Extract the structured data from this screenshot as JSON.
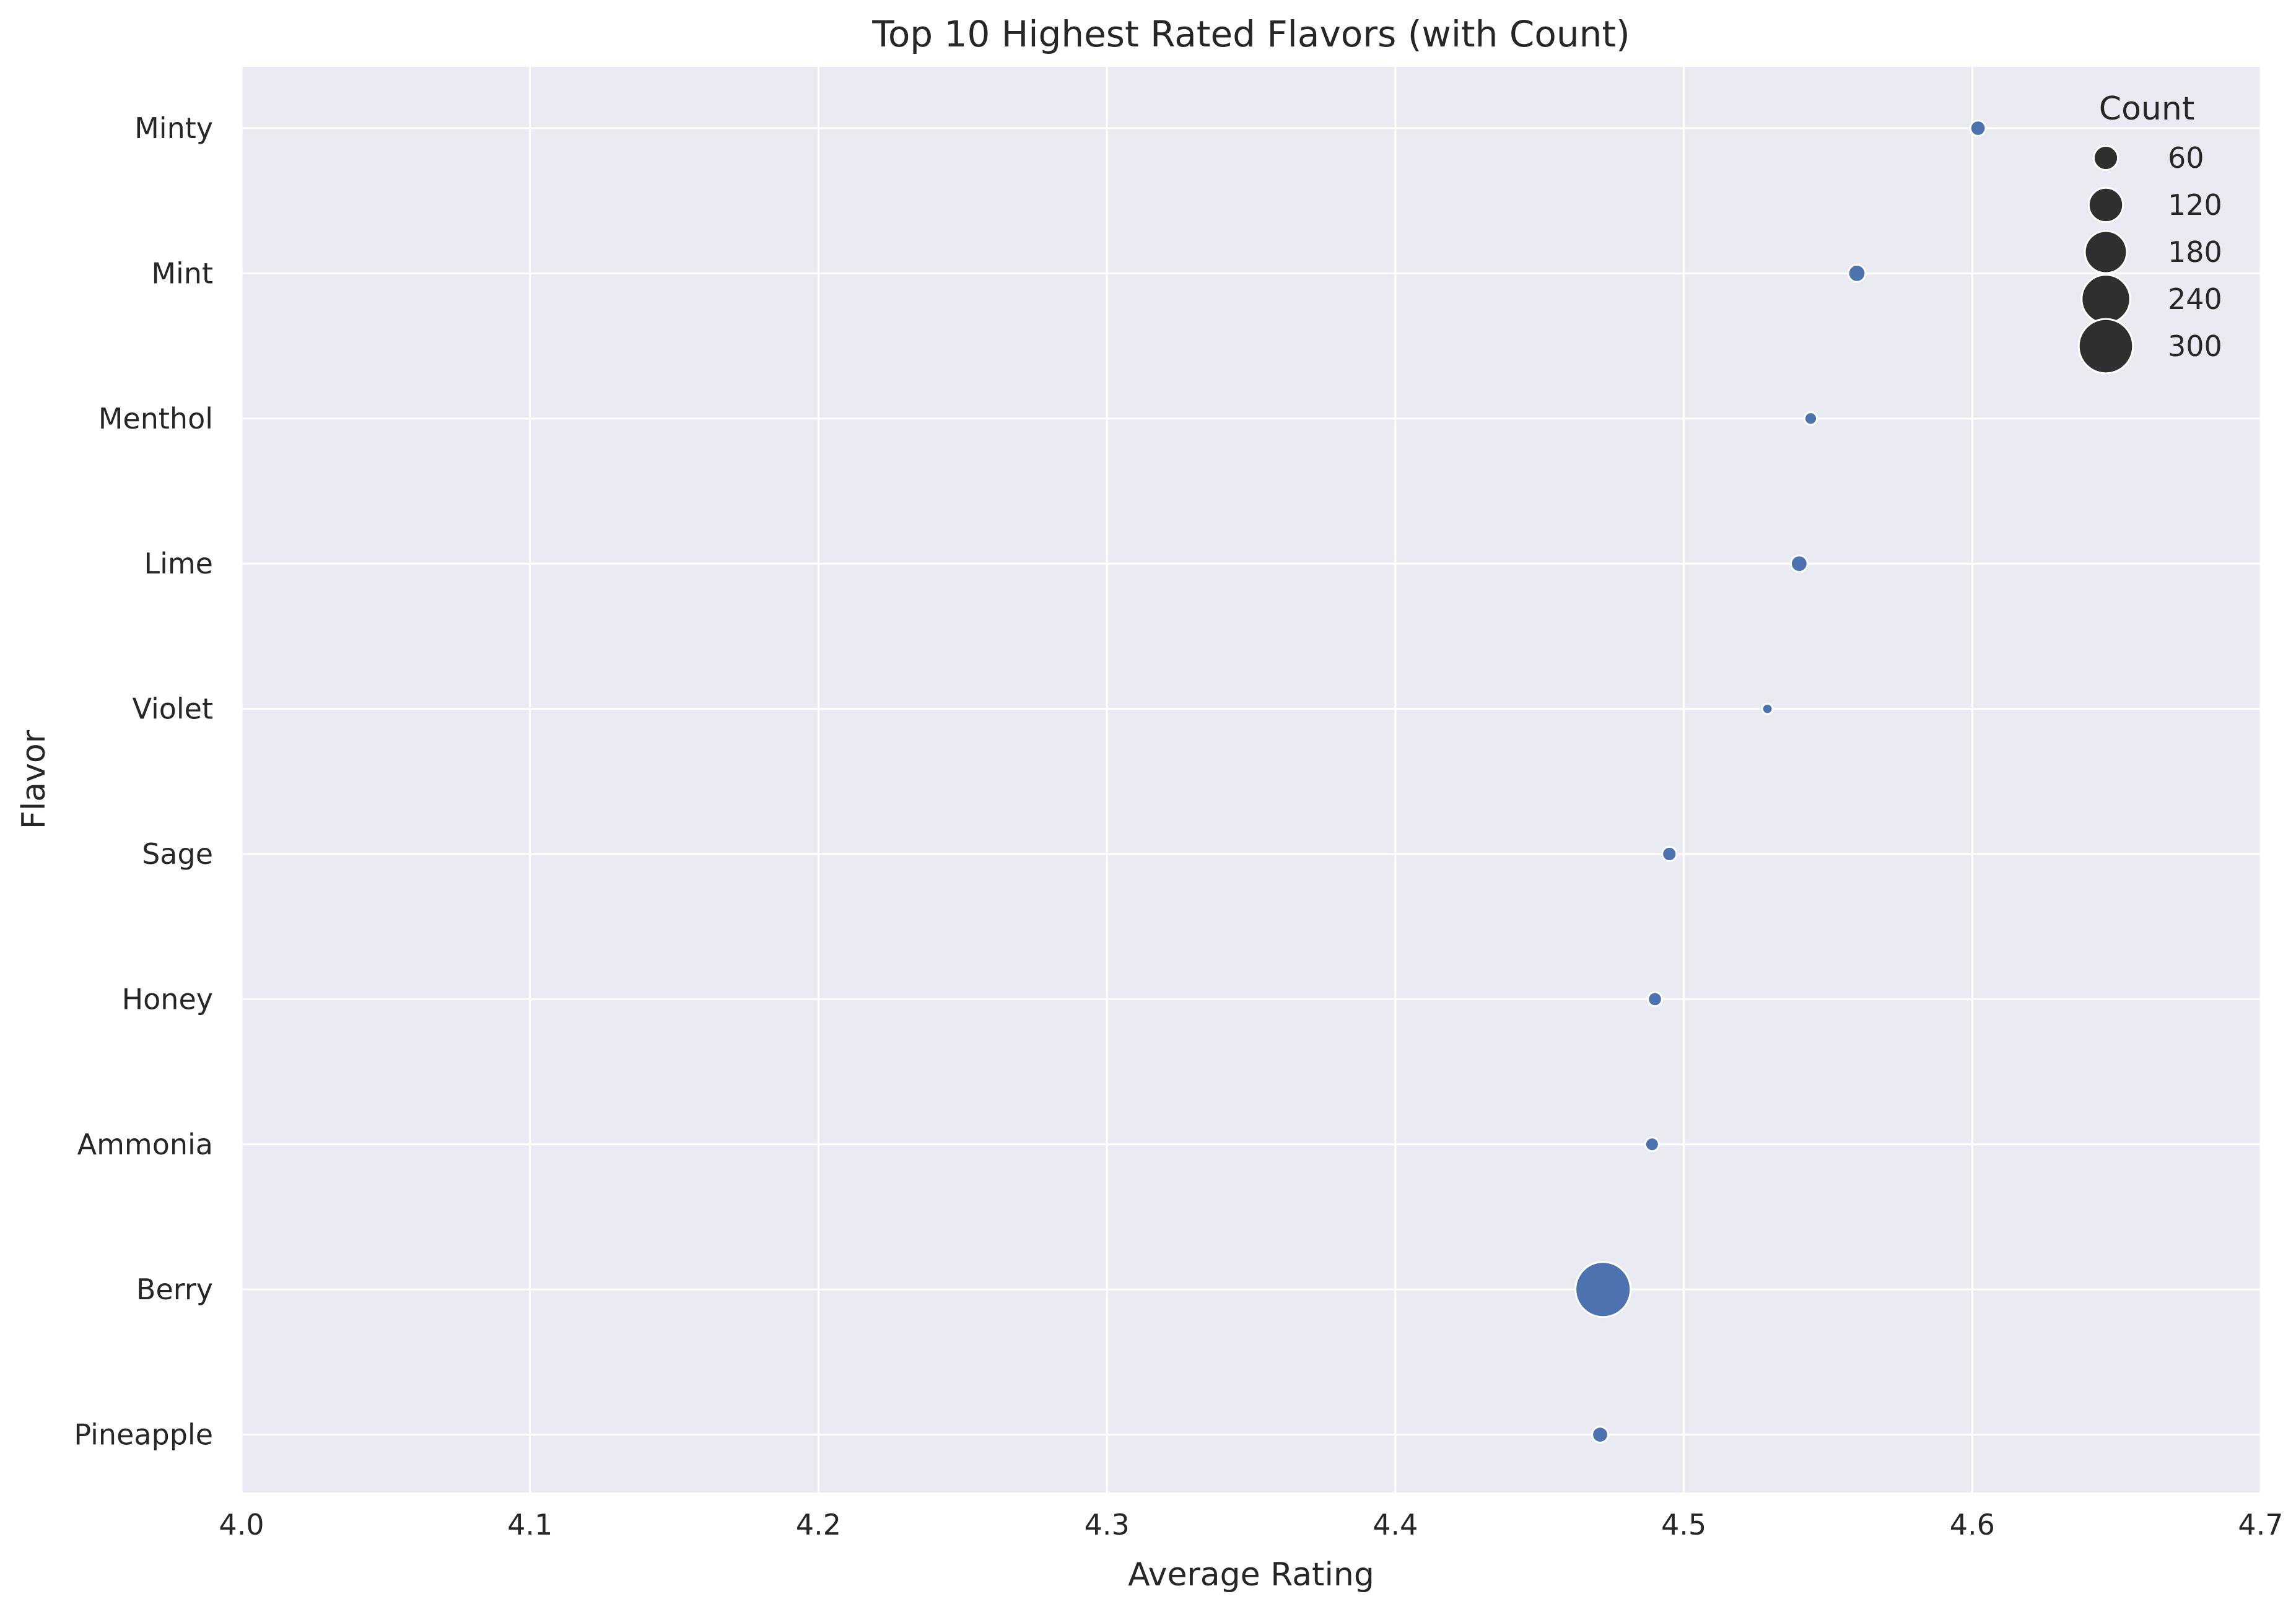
{
  "chart_data": {
    "type": "scatter",
    "title": "Top 10 Highest Rated Flavors (with Count)",
    "xlabel": "Average Rating",
    "ylabel": "Flavor",
    "xlim": [
      4.0,
      4.7
    ],
    "x_ticks": [
      "4.0",
      "4.1",
      "4.2",
      "4.3",
      "4.4",
      "4.5",
      "4.6",
      "4.7"
    ],
    "grid": true,
    "legend": {
      "title": "Count",
      "placement": "top-right",
      "entries": [
        {
          "label": "60",
          "count": 60
        },
        {
          "label": "120",
          "count": 120
        },
        {
          "label": "180",
          "count": 180
        },
        {
          "label": "240",
          "count": 240
        },
        {
          "label": "300",
          "count": 300
        }
      ]
    },
    "points": [
      {
        "flavor": "Minty",
        "rating": 4.602,
        "count": 24
      },
      {
        "flavor": "Mint",
        "rating": 4.56,
        "count": 30
      },
      {
        "flavor": "Menthol",
        "rating": 4.544,
        "count": 16
      },
      {
        "flavor": "Lime",
        "rating": 4.54,
        "count": 28
      },
      {
        "flavor": "Violet",
        "rating": 4.529,
        "count": 11
      },
      {
        "flavor": "Sage",
        "rating": 4.495,
        "count": 21
      },
      {
        "flavor": "Honey",
        "rating": 4.49,
        "count": 20
      },
      {
        "flavor": "Ammonia",
        "rating": 4.489,
        "count": 19
      },
      {
        "flavor": "Berry",
        "rating": 4.472,
        "count": 310
      },
      {
        "flavor": "Pineapple",
        "rating": 4.471,
        "count": 26
      }
    ],
    "colors": {
      "point": "#4c72b0",
      "legend_marker": "#2f2f2f",
      "plot_background": "#eaeaf2",
      "grid": "#ffffff"
    }
  }
}
